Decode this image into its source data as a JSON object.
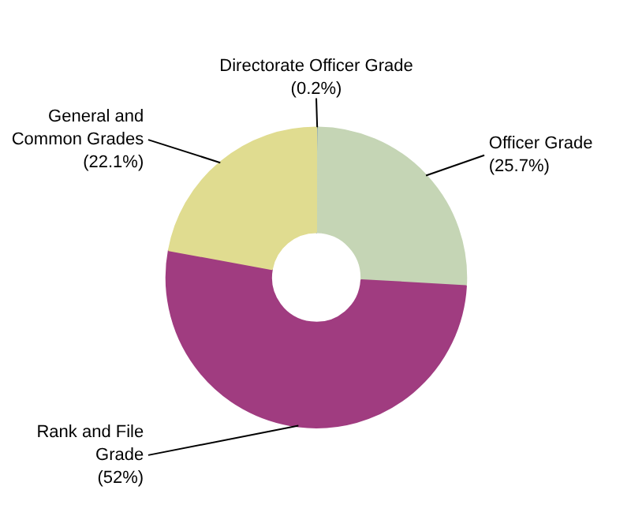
{
  "chart_data": {
    "type": "donut",
    "categories": [
      "Directorate Officer Grade",
      "Officer Grade",
      "Rank and File\nGrade",
      "General and\nCommon Grades"
    ],
    "values": [
      0.2,
      25.7,
      52,
      22.1
    ],
    "colors": [
      "#4a6fa5",
      "#c5d5b5",
      "#a03c80",
      "#e0dc90"
    ],
    "value_labels": [
      "(0.2%)",
      "(25.7%)",
      "(52%)",
      "(22.1%)"
    ]
  }
}
